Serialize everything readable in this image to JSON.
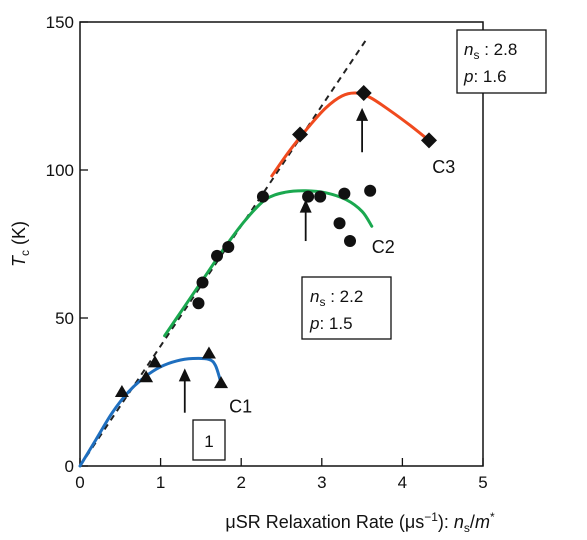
{
  "chart_data": {
    "type": "scatter",
    "title": "",
    "xlabel": {
      "main": "μSR Relaxation Rate (μs",
      "sup": "−1",
      "after": "): ",
      "var1": "n",
      "sub1": "s",
      "slash": "/",
      "var2": "m",
      "sup2": "*"
    },
    "ylabel": {
      "var": "T",
      "sub": "c",
      "unit": " (K)"
    },
    "xlim": [
      0,
      5
    ],
    "ylim": [
      0,
      150
    ],
    "x_ticks": [
      "0",
      "1",
      "2",
      "3",
      "4",
      "5"
    ],
    "y_ticks": [
      "0",
      "50",
      "100",
      "150"
    ],
    "grid": false,
    "colors": {
      "C1": "#1f6fbf",
      "C2": "#1aa84f",
      "C3": "#f04a1e",
      "guide": "#222222",
      "marker": "#111111"
    },
    "series": [
      {
        "name": "C1",
        "marker": "triangle",
        "points": [
          [
            0.52,
            25
          ],
          [
            0.82,
            30
          ],
          [
            0.93,
            35
          ],
          [
            1.6,
            38
          ],
          [
            1.75,
            28
          ]
        ],
        "curve": [
          [
            0,
            0
          ],
          [
            0.2,
            9
          ],
          [
            0.4,
            18
          ],
          [
            0.6,
            25
          ],
          [
            0.8,
            30
          ],
          [
            1.0,
            33.5
          ],
          [
            1.2,
            35.5
          ],
          [
            1.4,
            36.3
          ],
          [
            1.6,
            36
          ],
          [
            1.68,
            34
          ],
          [
            1.74,
            29
          ]
        ]
      },
      {
        "name": "C2",
        "marker": "circle",
        "points": [
          [
            1.47,
            55
          ],
          [
            1.52,
            62
          ],
          [
            1.7,
            71
          ],
          [
            1.84,
            74
          ],
          [
            2.27,
            91
          ],
          [
            2.83,
            91
          ],
          [
            2.98,
            91
          ],
          [
            3.28,
            92
          ],
          [
            3.22,
            82
          ],
          [
            3.35,
            76
          ],
          [
            3.6,
            93
          ]
        ],
        "curve": [
          [
            1.05,
            44
          ],
          [
            1.3,
            54
          ],
          [
            1.55,
            64
          ],
          [
            1.8,
            74
          ],
          [
            2.05,
            83
          ],
          [
            2.3,
            90
          ],
          [
            2.55,
            92.5
          ],
          [
            2.8,
            93
          ],
          [
            3.05,
            92.3
          ],
          [
            3.3,
            90
          ],
          [
            3.5,
            86
          ],
          [
            3.62,
            81
          ]
        ]
      },
      {
        "name": "C3",
        "marker": "diamond",
        "points": [
          [
            2.73,
            112
          ],
          [
            3.52,
            126
          ],
          [
            4.33,
            110
          ]
        ],
        "curve": [
          [
            2.38,
            98
          ],
          [
            2.6,
            106.5
          ],
          [
            2.85,
            115
          ],
          [
            3.05,
            121
          ],
          [
            3.25,
            125
          ],
          [
            3.42,
            126
          ],
          [
            3.6,
            124.5
          ],
          [
            3.85,
            120
          ],
          [
            4.1,
            115
          ],
          [
            4.33,
            110
          ]
        ]
      }
    ],
    "guide_line": {
      "style": "dashed",
      "from": [
        0,
        0
      ],
      "to": [
        3.55,
        144
      ]
    },
    "annotations": [
      {
        "label": "C1",
        "x": 1.85,
        "y": 18
      },
      {
        "label": "C2",
        "x": 3.62,
        "y": 72
      },
      {
        "label": "C3",
        "x": 4.37,
        "y": 99
      }
    ],
    "arrows": [
      {
        "x": 1.3,
        "y_from": 18,
        "y_to": 33
      },
      {
        "x": 2.8,
        "y_from": 76,
        "y_to": 90
      },
      {
        "x": 3.5,
        "y_from": 106,
        "y_to": 121
      }
    ],
    "boxes": [
      {
        "id": "box-1",
        "text": "1"
      },
      {
        "id": "box-c2",
        "ns_label": "n",
        "ns_sub": "s",
        "ns_value": " : 2.2",
        "p_label": "p",
        "p_value": ": 1.5"
      },
      {
        "id": "box-c3",
        "ns_label": "n",
        "ns_sub": "s",
        "ns_value": " : 2.8",
        "p_label": "p",
        "p_value": ": 1.6"
      }
    ]
  }
}
